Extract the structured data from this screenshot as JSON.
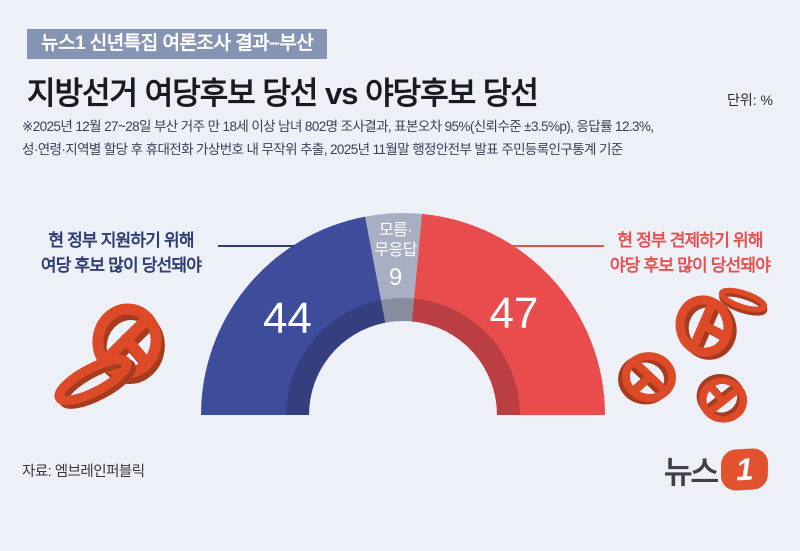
{
  "header": {
    "badge": "뉴스1 신년특집 여론조사 결과–부산",
    "title": "지방선거 여당후보 당선 vs 야당후보 당선",
    "unit_label": "단위: %",
    "note_line1": "※2025년 12월 27~28일 부산 거주 만 18세 이상 남녀 802명 조사결과, 표본오차 95%(신뢰수준 ±3.5%p), 응답률 12.3%,",
    "note_line2": "성·연령·지역별 할당 후 휴대전화 가상번호 내 무작위 추출,  2025년 11월말 행정안전부 발표 주민등록인구통계 기준"
  },
  "annotations": {
    "left": {
      "line1": "현 정부 지원하기 위해",
      "line2": "여당 후보 많이 당선돼야",
      "color": "#2f3d72"
    },
    "right": {
      "line1": "현 정부 견제하기 위해",
      "line2": "야당 후보 많이 당선돼야",
      "color": "#e45252"
    }
  },
  "chart_data": {
    "type": "pie",
    "subtype": "semicircle_donut",
    "title": "지방선거 여당후보 당선 vs 야당후보 당선",
    "unit": "%",
    "total": 100,
    "start_angle_deg": 180,
    "end_angle_deg": 0,
    "legend_position": "inside",
    "segments": [
      {
        "label": "현 정부 지원하기 위해 여당 후보 많이 당선돼야",
        "value": 44,
        "color": "#3e4c9c"
      },
      {
        "label": "모름·무응답",
        "label_line1": "모름·",
        "label_line2": "무응답",
        "value": 9,
        "color": "#a9afc3"
      },
      {
        "label": "현 정부 견제하기 위해 야당 후보 많이 당선돼야",
        "value": 47,
        "color": "#e94c4c"
      }
    ]
  },
  "footer": {
    "source": "자료: 엠브레인퍼블릭",
    "logo_text": "뉴스",
    "logo_number": "1"
  },
  "colors": {
    "background": "#edf0f7",
    "badge_bg": "#8494b2",
    "inner_shadow": "rgba(25,20,30,0.22)",
    "stamp_main": "#dd4a28",
    "stamp_dark": "#a83a1e",
    "logo_orange": "#e2522e"
  }
}
